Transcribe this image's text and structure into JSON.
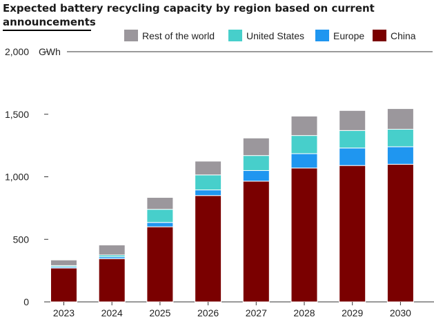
{
  "chart_data": {
    "type": "bar",
    "stacked": true,
    "title": "Expected battery recycling capacity by region based on current announcements",
    "ylabel": "GWh",
    "xlabel": "",
    "categories": [
      "2023",
      "2024",
      "2025",
      "2026",
      "2027",
      "2028",
      "2029",
      "2030"
    ],
    "ylim": [
      0,
      2000
    ],
    "yticks": [
      0,
      500,
      1000,
      1500,
      2000
    ],
    "ytick_labels": [
      "0",
      "500",
      "1,000",
      "1,500",
      "2,000"
    ],
    "grid": "top line only",
    "legend_position": "top",
    "series": [
      {
        "name": "China",
        "color": "#7a0000",
        "values": [
          270,
          345,
          600,
          850,
          965,
          1070,
          1090,
          1100
        ]
      },
      {
        "name": "Europe",
        "color": "#1f96f0",
        "values": [
          10,
          15,
          35,
          45,
          85,
          115,
          140,
          140
        ]
      },
      {
        "name": "United States",
        "color": "#47cfcb",
        "values": [
          10,
          15,
          105,
          120,
          120,
          145,
          140,
          140
        ]
      },
      {
        "name": "Rest of the world",
        "color": "#9b979c",
        "values": [
          45,
          80,
          95,
          110,
          140,
          155,
          160,
          165
        ]
      }
    ],
    "legend_order": [
      "Rest of the world",
      "United States",
      "Europe",
      "China"
    ]
  }
}
